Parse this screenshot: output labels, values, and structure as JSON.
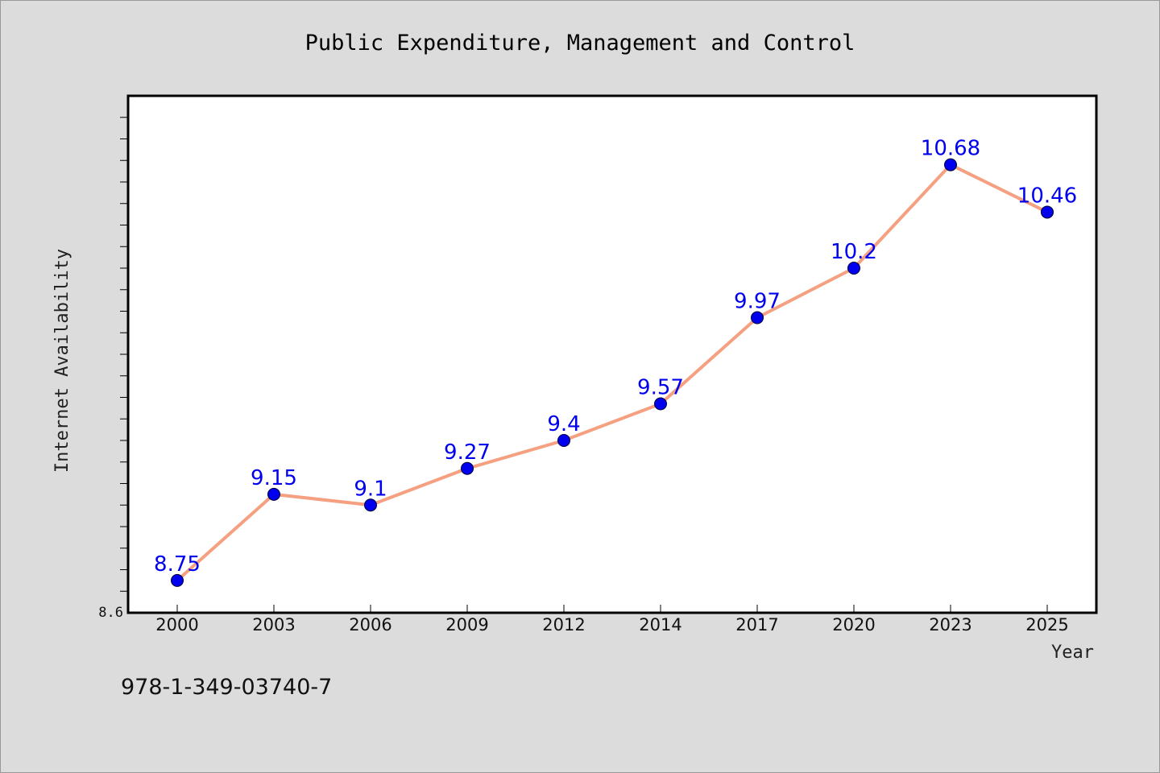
{
  "chart_data": {
    "type": "line",
    "title": "Public Expenditure, Management and Control",
    "xlabel": "Year",
    "ylabel": "Internet Availability",
    "categories": [
      "2000",
      "2003",
      "2006",
      "2009",
      "2012",
      "2014",
      "2017",
      "2020",
      "2023",
      "2025"
    ],
    "series": [
      {
        "values": [
          8.75,
          9.15,
          9.1,
          9.27,
          9.4,
          9.57,
          9.97,
          10.2,
          10.68,
          10.46
        ]
      }
    ],
    "data_labels": [
      "8.75",
      "9.15",
      "9.1",
      "9.27",
      "9.4",
      "9.57",
      "9.97",
      "10.2",
      "10.68",
      "10.46"
    ],
    "ylim": [
      8.6,
      11.0
    ],
    "y_tick_labels": [
      "8.6"
    ],
    "grid": false,
    "legend": false,
    "colors": {
      "line": "#f5a080",
      "marker": "#0000ee",
      "data_label": "#0000ee",
      "background": "#dcdcdc",
      "plot_background": "#ffffff"
    }
  },
  "footer": {
    "isbn": "978-1-349-03740-7"
  }
}
